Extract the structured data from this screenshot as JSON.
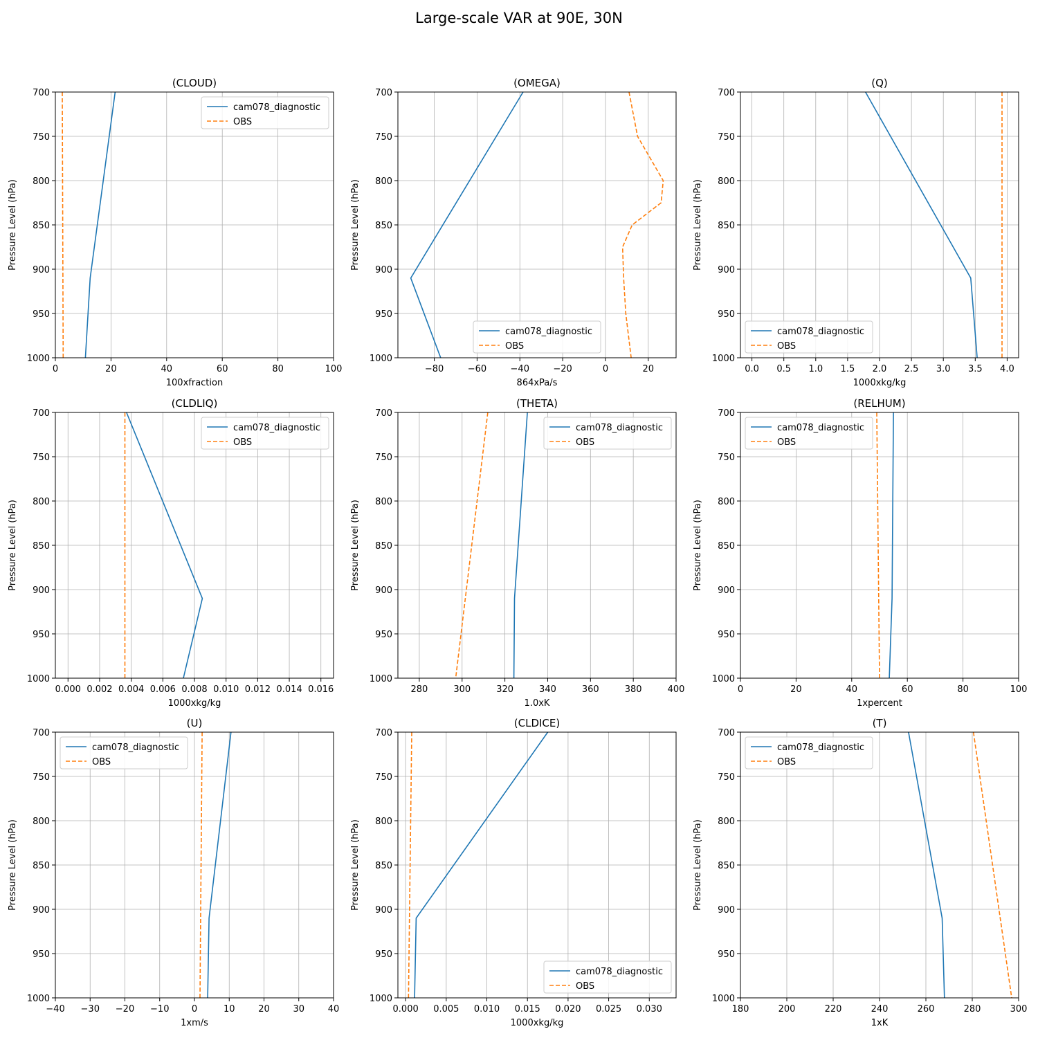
{
  "figure": {
    "title": "Large-scale VAR at 90E, 30N"
  },
  "colors": {
    "model": "#1f77b4",
    "obs": "#ff7f0e",
    "grid": "#b0b0b0"
  },
  "chart_data": [
    {
      "type": "line",
      "title": "(CLOUD)",
      "xlabel": "100xfraction",
      "ylabel": "Pressure Level (hPa)",
      "xlim": [
        0,
        100
      ],
      "xticks": [
        0,
        20,
        40,
        60,
        80,
        100
      ],
      "xtick_labels": [
        "0",
        "20",
        "40",
        "60",
        "80",
        "100"
      ],
      "ylim": [
        700,
        1000
      ],
      "yticks": [
        700,
        750,
        800,
        850,
        900,
        950,
        1000
      ],
      "ytick_labels": [
        "700",
        "750",
        "800",
        "850",
        "900",
        "950",
        "1000"
      ],
      "y_inverted": true,
      "grid": true,
      "legend": "upper right",
      "series": [
        {
          "name": "cam078_diagnostic",
          "style": "solid",
          "points": [
            [
              21.5,
              700
            ],
            [
              12.5,
              910
            ],
            [
              10.8,
              1000
            ]
          ]
        },
        {
          "name": "OBS",
          "style": "dashed",
          "points": [
            [
              2.5,
              700
            ],
            [
              2.8,
              1000
            ]
          ]
        }
      ]
    },
    {
      "type": "line",
      "title": "(OMEGA)",
      "xlabel": "864xPa/s",
      "ylabel": "Pressure Level (hPa)",
      "xlim": [
        -97,
        33
      ],
      "xticks": [
        -80,
        -60,
        -40,
        -20,
        0,
        20
      ],
      "xtick_labels": [
        "−80",
        "−60",
        "−40",
        "−20",
        "0",
        "20"
      ],
      "ylim": [
        700,
        1000
      ],
      "yticks": [
        700,
        750,
        800,
        850,
        900,
        950,
        1000
      ],
      "ytick_labels": [
        "700",
        "750",
        "800",
        "850",
        "900",
        "950",
        "1000"
      ],
      "y_inverted": true,
      "grid": true,
      "legend": "lower center",
      "series": [
        {
          "name": "cam078_diagnostic",
          "style": "solid",
          "points": [
            [
              -38.5,
              700
            ],
            [
              -91,
              910
            ],
            [
              -77,
              1000
            ]
          ]
        },
        {
          "name": "OBS",
          "style": "dashed",
          "points": [
            [
              11,
              700
            ],
            [
              15,
              750
            ],
            [
              27,
              800
            ],
            [
              26,
              825
            ],
            [
              12.5,
              850
            ],
            [
              8,
              875
            ],
            [
              8.5,
              910
            ],
            [
              9.5,
              950
            ],
            [
              12,
              1000
            ]
          ]
        }
      ]
    },
    {
      "type": "line",
      "title": "(Q)",
      "xlabel": "1000xkg/kg",
      "ylabel": "Pressure Level (hPa)",
      "xlim": [
        -0.18,
        4.18
      ],
      "xticks": [
        0,
        0.5,
        1.0,
        1.5,
        2.0,
        2.5,
        3.0,
        3.5,
        4.0
      ],
      "xtick_labels": [
        "0.0",
        "0.5",
        "1.0",
        "1.5",
        "2.0",
        "2.5",
        "3.0",
        "3.5",
        "4.0"
      ],
      "ylim": [
        700,
        1000
      ],
      "yticks": [
        700,
        750,
        800,
        850,
        900,
        950,
        1000
      ],
      "ytick_labels": [
        "700",
        "750",
        "800",
        "850",
        "900",
        "950",
        "1000"
      ],
      "y_inverted": true,
      "grid": true,
      "legend": "lower left",
      "series": [
        {
          "name": "cam078_diagnostic",
          "style": "solid",
          "points": [
            [
              1.78,
              700
            ],
            [
              3.43,
              910
            ],
            [
              3.53,
              1000
            ]
          ]
        },
        {
          "name": "OBS",
          "style": "dashed",
          "points": [
            [
              3.92,
              700
            ],
            [
              3.92,
              1000
            ]
          ]
        }
      ]
    },
    {
      "type": "line",
      "title": "(CLDLIQ)",
      "xlabel": "1000xkg/kg",
      "ylabel": "Pressure Level (hPa)",
      "xlim": [
        -0.0008,
        0.0168
      ],
      "xticks": [
        0,
        0.002,
        0.004,
        0.006,
        0.008,
        0.01,
        0.012,
        0.014,
        0.016
      ],
      "xtick_labels": [
        "0.000",
        "0.002",
        "0.004",
        "0.006",
        "0.008",
        "0.010",
        "0.012",
        "0.014",
        "0.016"
      ],
      "ylim": [
        700,
        1000
      ],
      "yticks": [
        700,
        750,
        800,
        850,
        900,
        950,
        1000
      ],
      "ytick_labels": [
        "700",
        "750",
        "800",
        "850",
        "900",
        "950",
        "1000"
      ],
      "y_inverted": true,
      "grid": true,
      "legend": "upper right",
      "series": [
        {
          "name": "cam078_diagnostic",
          "style": "solid",
          "points": [
            [
              0.0037,
              700
            ],
            [
              0.0085,
              910
            ],
            [
              0.0073,
              1000
            ]
          ]
        },
        {
          "name": "OBS",
          "style": "dashed",
          "points": [
            [
              0.0036,
              700
            ],
            [
              0.0036,
              1000
            ]
          ]
        }
      ]
    },
    {
      "type": "line",
      "title": "(THETA)",
      "xlabel": "1.0xK",
      "ylabel": "Pressure Level (hPa)",
      "xlim": [
        270,
        400
      ],
      "xticks": [
        280,
        300,
        320,
        340,
        360,
        380,
        400
      ],
      "xtick_labels": [
        "280",
        "300",
        "320",
        "340",
        "360",
        "380",
        "400"
      ],
      "ylim": [
        700,
        1000
      ],
      "yticks": [
        700,
        750,
        800,
        850,
        900,
        950,
        1000
      ],
      "ytick_labels": [
        "700",
        "750",
        "800",
        "850",
        "900",
        "950",
        "1000"
      ],
      "y_inverted": true,
      "grid": true,
      "legend": "upper right",
      "series": [
        {
          "name": "cam078_diagnostic",
          "style": "solid",
          "points": [
            [
              330.5,
              700
            ],
            [
              324.5,
              910
            ],
            [
              324.2,
              1000
            ]
          ]
        },
        {
          "name": "OBS",
          "style": "dashed",
          "points": [
            [
              312,
              700
            ],
            [
              297,
              1000
            ]
          ]
        }
      ]
    },
    {
      "type": "line",
      "title": "(RELHUM)",
      "xlabel": "1xpercent",
      "ylabel": "Pressure Level (hPa)",
      "xlim": [
        0,
        100
      ],
      "xticks": [
        0,
        20,
        40,
        60,
        80,
        100
      ],
      "xtick_labels": [
        "0",
        "20",
        "40",
        "60",
        "80",
        "100"
      ],
      "ylim": [
        700,
        1000
      ],
      "yticks": [
        700,
        750,
        800,
        850,
        900,
        950,
        1000
      ],
      "ytick_labels": [
        "700",
        "750",
        "800",
        "850",
        "900",
        "950",
        "1000"
      ],
      "y_inverted": true,
      "grid": true,
      "legend": "upper left",
      "series": [
        {
          "name": "cam078_diagnostic",
          "style": "solid",
          "points": [
            [
              55,
              700
            ],
            [
              54.5,
              910
            ],
            [
              53.5,
              1000
            ]
          ]
        },
        {
          "name": "OBS",
          "style": "dashed",
          "points": [
            [
              49,
              700
            ],
            [
              50,
              1000
            ]
          ]
        }
      ]
    },
    {
      "type": "line",
      "title": "(U)",
      "xlabel": "1xm/s",
      "ylabel": "Pressure Level (hPa)",
      "xlim": [
        -40,
        40
      ],
      "xticks": [
        -40,
        -30,
        -20,
        -10,
        0,
        10,
        20,
        30,
        40
      ],
      "xtick_labels": [
        "−40",
        "−30",
        "−20",
        "−10",
        "0",
        "10",
        "20",
        "30",
        "40"
      ],
      "ylim": [
        700,
        1000
      ],
      "yticks": [
        700,
        750,
        800,
        850,
        900,
        950,
        1000
      ],
      "ytick_labels": [
        "700",
        "750",
        "800",
        "850",
        "900",
        "950",
        "1000"
      ],
      "y_inverted": true,
      "grid": true,
      "legend": "upper left",
      "series": [
        {
          "name": "cam078_diagnostic",
          "style": "solid",
          "points": [
            [
              10.5,
              700
            ],
            [
              4.2,
              910
            ],
            [
              3.8,
              1000
            ]
          ]
        },
        {
          "name": "OBS",
          "style": "dashed",
          "points": [
            [
              2.2,
              700
            ],
            [
              1.6,
              1000
            ]
          ]
        }
      ]
    },
    {
      "type": "line",
      "title": "(CLDICE)",
      "xlabel": "1000xkg/kg",
      "ylabel": "Pressure Level (hPa)",
      "xlim": [
        -0.00095,
        0.0333
      ],
      "xticks": [
        0,
        0.005,
        0.01,
        0.015,
        0.02,
        0.025,
        0.03
      ],
      "xtick_labels": [
        "0.000",
        "0.005",
        "0.010",
        "0.015",
        "0.020",
        "0.025",
        "0.030"
      ],
      "ylim": [
        700,
        1000
      ],
      "yticks": [
        700,
        750,
        800,
        850,
        900,
        950,
        1000
      ],
      "ytick_labels": [
        "700",
        "750",
        "800",
        "850",
        "900",
        "950",
        "1000"
      ],
      "y_inverted": true,
      "grid": true,
      "legend": "lower right",
      "series": [
        {
          "name": "cam078_diagnostic",
          "style": "solid",
          "points": [
            [
              0.0175,
              700
            ],
            [
              0.0013,
              910
            ],
            [
              0.0011,
              1000
            ]
          ]
        },
        {
          "name": "OBS",
          "style": "dashed",
          "points": [
            [
              0.00075,
              700
            ],
            [
              0.00035,
              1000
            ]
          ]
        }
      ]
    },
    {
      "type": "line",
      "title": "(T)",
      "xlabel": "1xK",
      "ylabel": "Pressure Level (hPa)",
      "xlim": [
        180,
        300
      ],
      "xticks": [
        180,
        200,
        220,
        240,
        260,
        280,
        300
      ],
      "xtick_labels": [
        "180",
        "200",
        "220",
        "240",
        "260",
        "280",
        "300"
      ],
      "ylim": [
        700,
        1000
      ],
      "yticks": [
        700,
        750,
        800,
        850,
        900,
        950,
        1000
      ],
      "ytick_labels": [
        "700",
        "750",
        "800",
        "850",
        "900",
        "950",
        "1000"
      ],
      "y_inverted": true,
      "grid": true,
      "legend": "upper left",
      "series": [
        {
          "name": "cam078_diagnostic",
          "style": "solid",
          "points": [
            [
              252.5,
              700
            ],
            [
              267,
              910
            ],
            [
              268,
              1000
            ]
          ]
        },
        {
          "name": "OBS",
          "style": "dashed",
          "points": [
            [
              280.5,
              700
            ],
            [
              297,
              1000
            ]
          ]
        }
      ]
    }
  ]
}
